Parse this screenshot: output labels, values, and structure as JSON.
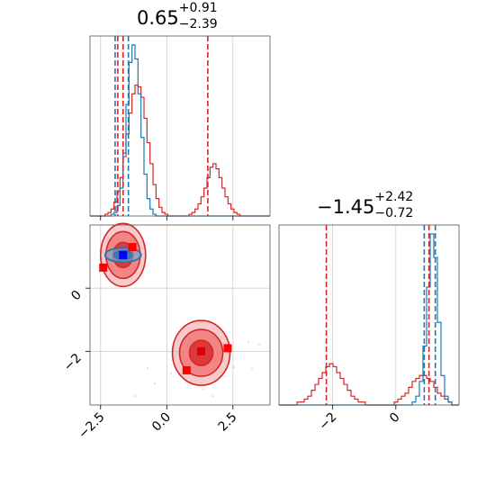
{
  "chart_data": {
    "type": "corner",
    "parameters": [
      {
        "title_value": "0.65",
        "title_plus": "+0.91",
        "title_minus": "−2.39"
      },
      {
        "title_value": "−1.45",
        "title_plus": "+2.42",
        "title_minus": "−0.72"
      }
    ],
    "x1_ticks": [
      {
        "value": -2.5,
        "label": "−2.5"
      },
      {
        "value": 0,
        "label": "0.0"
      },
      {
        "value": 2.5,
        "label": "2.5"
      }
    ],
    "x2_ticks": [
      {
        "value": -2,
        "label": "−2"
      },
      {
        "value": 0,
        "label": "0"
      }
    ],
    "y2_ticks": [
      {
        "value": 0,
        "label": "0"
      },
      {
        "value": -2,
        "label": "−2"
      }
    ],
    "range_x1": [
      -2.9,
      3.9
    ],
    "range_x2": [
      -3.7,
      2.0
    ],
    "quantile_lines": {
      "x1_red": [
        -1.85,
        -1.65,
        1.55
      ],
      "x1_blue": [
        -1.95,
        -1.45
      ],
      "x2_red": [
        -2.2,
        1.05
      ],
      "x2_blue": [
        0.9,
        1.25
      ]
    },
    "truth_x1": -1.65,
    "truth_x2_blue": 1.05,
    "series": [
      {
        "color": "#d62728",
        "hist_x1": [
          0,
          0,
          0,
          0,
          0,
          1,
          2,
          4,
          8,
          14,
          22,
          34,
          47,
          59,
          70,
          75,
          74,
          68,
          56,
          42,
          30,
          18,
          10,
          5,
          2,
          1,
          0,
          0,
          0,
          0,
          0,
          0,
          0,
          1,
          2,
          4,
          7,
          11,
          16,
          22,
          28,
          30,
          27,
          22,
          16,
          11,
          7,
          4,
          2,
          1,
          0,
          0,
          0,
          0,
          0,
          0,
          0,
          0,
          0,
          0
        ],
        "hist_x2": [
          0,
          0,
          0,
          0,
          0,
          1,
          1,
          2,
          3,
          5,
          7,
          9,
          11,
          13,
          14,
          13,
          11,
          9,
          7,
          5,
          3,
          2,
          1,
          1,
          0,
          0,
          0,
          0,
          0,
          0,
          0,
          0,
          1,
          2,
          3,
          4,
          6,
          8,
          9,
          10,
          10,
          9,
          8,
          6,
          4,
          3,
          2,
          1,
          0,
          0
        ]
      },
      {
        "color": "#1f77b4",
        "hist_x1": [
          0,
          0,
          0,
          0,
          0,
          0,
          0,
          1,
          2,
          6,
          16,
          36,
          64,
          88,
          98,
          90,
          70,
          45,
          24,
          10,
          4,
          1,
          0,
          0,
          0,
          0,
          0,
          0,
          0,
          0,
          0,
          0,
          0,
          0,
          0,
          0,
          0,
          0,
          0,
          0,
          0,
          0,
          0,
          0,
          0,
          0,
          0,
          0,
          0,
          0,
          0,
          0,
          0,
          0,
          0,
          0,
          0,
          0,
          0,
          0
        ],
        "hist_x2": [
          0,
          0,
          0,
          0,
          0,
          0,
          0,
          0,
          0,
          0,
          0,
          0,
          0,
          0,
          0,
          0,
          0,
          0,
          0,
          0,
          0,
          0,
          0,
          0,
          0,
          0,
          0,
          0,
          0,
          0,
          0,
          0,
          0,
          0,
          0,
          0,
          0,
          1,
          3,
          8,
          20,
          40,
          58,
          50,
          28,
          10,
          3,
          1,
          0,
          0
        ]
      }
    ],
    "points_2d": [
      {
        "x": -1.3,
        "y": 1.3,
        "color": "#ff0000"
      },
      {
        "x": -2.4,
        "y": 0.65,
        "color": "#ff0000"
      },
      {
        "x": 2.3,
        "y": -1.9,
        "color": "#ff0000"
      },
      {
        "x": 0.75,
        "y": -2.6,
        "color": "#ff0000"
      },
      {
        "x": -1.65,
        "y": 1.05,
        "color": "#0000ff"
      },
      {
        "x": 1.3,
        "y": -2.0,
        "color": "#dd0000"
      }
    ],
    "grid": true
  }
}
